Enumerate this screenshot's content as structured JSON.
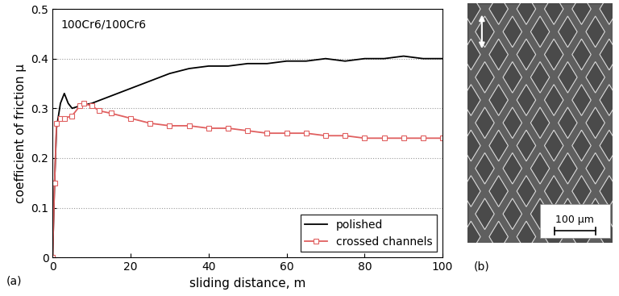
{
  "chart_data": {
    "type": "line",
    "title": "100Cr6/100Cr6",
    "x_label": "sliding distance, m",
    "y_label": "coefficient of friction μ",
    "xlim": [
      0,
      100
    ],
    "xticks": [
      0,
      20,
      40,
      60,
      80,
      100
    ],
    "ylim": [
      0,
      0.5
    ],
    "yticks": [
      0,
      0.1,
      0.2,
      0.3,
      0.4,
      0.5
    ],
    "grid": true,
    "legend": "lower right",
    "series": [
      {
        "name": "polished",
        "color": "#000000",
        "line_style": "solid",
        "x": [
          0,
          0.5,
          1,
          2,
          3,
          4,
          5,
          7,
          10,
          15,
          20,
          25,
          30,
          35,
          40,
          45,
          50,
          55,
          60,
          65,
          70,
          75,
          80,
          85,
          90,
          95,
          100
        ],
        "values": [
          0,
          0.15,
          0.26,
          0.31,
          0.33,
          0.31,
          0.3,
          0.305,
          0.31,
          0.325,
          0.34,
          0.355,
          0.37,
          0.38,
          0.385,
          0.385,
          0.39,
          0.39,
          0.395,
          0.395,
          0.4,
          0.395,
          0.4,
          0.4,
          0.405,
          0.4,
          0.4
        ]
      },
      {
        "name": "crossed channels",
        "color": "#e06060",
        "line_style": "solid",
        "marker": "square",
        "x": [
          0,
          0.5,
          1,
          2,
          3,
          5,
          7,
          8,
          10,
          12,
          15,
          20,
          25,
          30,
          35,
          40,
          45,
          50,
          55,
          60,
          65,
          70,
          75,
          80,
          85,
          90,
          95,
          100
        ],
        "values": [
          0,
          0.15,
          0.27,
          0.28,
          0.28,
          0.285,
          0.305,
          0.31,
          0.305,
          0.295,
          0.29,
          0.28,
          0.27,
          0.265,
          0.265,
          0.26,
          0.26,
          0.255,
          0.25,
          0.25,
          0.25,
          0.245,
          0.245,
          0.24,
          0.24,
          0.24,
          0.24,
          0.24
        ]
      }
    ]
  },
  "panel_labels": [
    "(a)",
    "(b)"
  ],
  "image": {
    "scale_bar": "100 µm"
  }
}
